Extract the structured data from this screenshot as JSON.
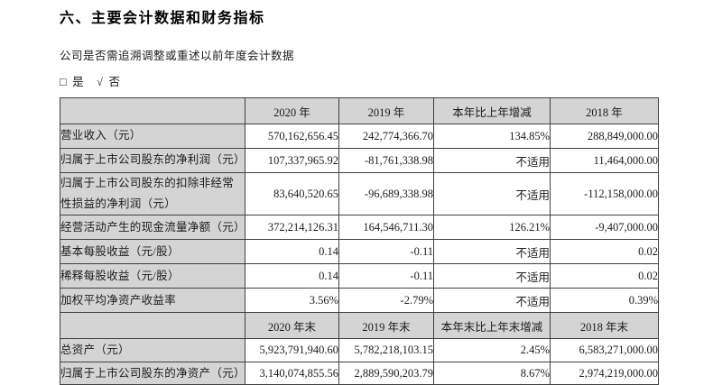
{
  "header": {
    "title": "六、主要会计数据和财务指标"
  },
  "restatement": {
    "question": "公司是否需追溯调整或重述以前年度会计数据",
    "checkbox_glyph": "□",
    "check_glyph": "√",
    "yes_label": "是",
    "no_label": "否"
  },
  "colors": {
    "header_bg": "#d4d4d4",
    "border": "#404040",
    "page_bg": "#ffffff"
  },
  "table": {
    "annual_header": {
      "y2020": "2020 年",
      "y2019": "2019 年",
      "change": "本年比上年增减",
      "y2018": "2018 年"
    },
    "annual_rows": [
      {
        "label": "营业收入（元）",
        "v2020": "570,162,656.45",
        "v2019": "242,774,366.70",
        "change": "134.85%",
        "v2018": "288,849,000.00"
      },
      {
        "label": "归属于上市公司股东的净利润（元）",
        "v2020": "107,337,965.92",
        "v2019": "-81,761,338.98",
        "change": "不适用",
        "v2018": "11,464,000.00"
      },
      {
        "label": "归属于上市公司股东的扣除非经常性损益的净利润（元）",
        "v2020": "83,640,520.65",
        "v2019": "-96,689,338.98",
        "change": "不适用",
        "v2018": "-112,158,000.00"
      },
      {
        "label": "经营活动产生的现金流量净额（元）",
        "v2020": "372,214,126.31",
        "v2019": "164,546,711.30",
        "change": "126.21%",
        "v2018": "-9,407,000.00"
      },
      {
        "label": "基本每股收益（元/股）",
        "v2020": "0.14",
        "v2019": "-0.11",
        "change": "不适用",
        "v2018": "0.02"
      },
      {
        "label": "稀释每股收益（元/股）",
        "v2020": "0.14",
        "v2019": "-0.11",
        "change": "不适用",
        "v2018": "0.02"
      },
      {
        "label": "加权平均净资产收益率",
        "v2020": "3.56%",
        "v2019": "-2.79%",
        "change": "不适用",
        "v2018": "0.39%"
      }
    ],
    "eoy_header": {
      "y2020": "2020 年末",
      "y2019": "2019 年末",
      "change": "本年末比上年末增减",
      "y2018": "2018 年末"
    },
    "eoy_rows": [
      {
        "label": "总资产（元）",
        "v2020": "5,923,791,940.60",
        "v2019": "5,782,218,103.15",
        "change": "2.45%",
        "v2018": "6,583,271,000.00"
      },
      {
        "label": "归属于上市公司股东的净资产（元）",
        "v2020": "3,140,074,855.56",
        "v2019": "2,889,590,203.79",
        "change": "8.67%",
        "v2018": "2,974,219,000.00"
      }
    ]
  }
}
